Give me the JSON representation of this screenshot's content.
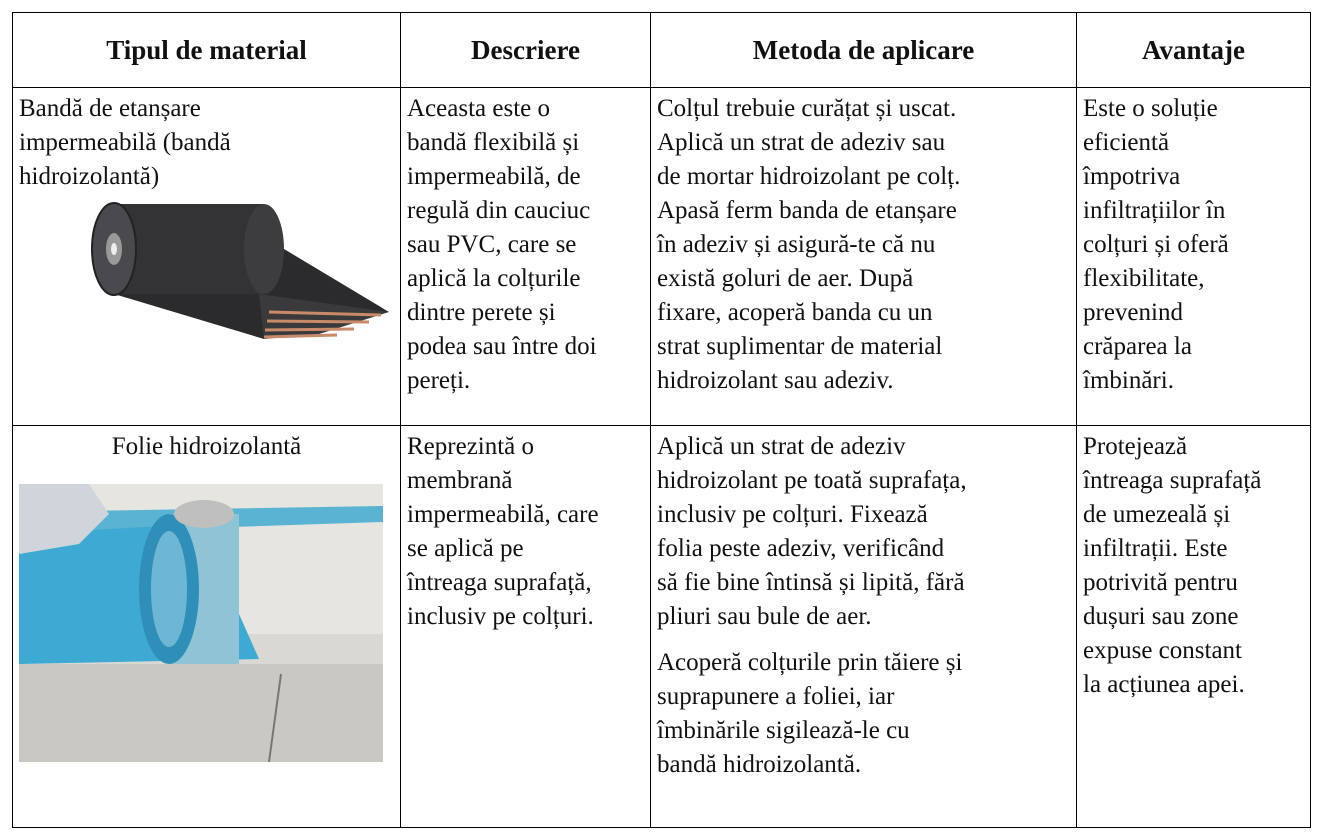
{
  "table": {
    "header": [
      "Tipul de material",
      "Descriere",
      "Metoda de aplicare",
      "Avantaje"
    ],
    "rows": [
      {
        "cells": [
          [
            [
              "Bandă de etanșare",
              "impermeabilă (bandă",
              "hidroizolantă)"
            ]
          ],
          [
            [
              "Aceasta este o",
              "bandă flexibilă și",
              "impermeabilă, de",
              "regulă din cauciuc",
              "sau PVC, care se",
              "aplică la colțurile",
              "dintre perete și",
              "podea sau între doi",
              "pereți."
            ]
          ],
          [
            [
              "Colțul trebuie curățat și uscat.",
              "Aplică un strat de adeziv sau",
              "de mortar hidroizolant pe colț.",
              "Apasă ferm banda de etanșare",
              "în adeziv și asigură-te că nu",
              "există goluri de aer. După",
              "fixare, acoperă banda cu un",
              "strat suplimentar de material",
              "hidroizolant sau adeziv."
            ]
          ],
          [
            [
              "Este o soluție",
              "eficientă",
              "împotriva",
              "infiltrațiilor în",
              "colțuri și oferă",
              "flexibilitate,",
              "prevenind",
              "crăparea la",
              "îmbinări."
            ]
          ]
        ]
      },
      {
        "cells": [
          [
            [
              "Folie hidroizolantă"
            ]
          ],
          [
            [
              "Reprezintă o",
              "membrană",
              "impermeabilă, care",
              "se aplică pe",
              "întreaga suprafață,",
              "inclusiv pe colțuri."
            ]
          ],
          [
            [
              "Aplică un strat de adeziv",
              "hidroizolant pe toată suprafața,",
              "inclusiv pe colțuri. Fixează",
              "folia peste adeziv, verificând",
              "să fie bine întinsă și lipită, fără",
              "pliuri sau bule de aer."
            ],
            [
              "Acoperă colțurile prin tăiere și",
              "suprapunere a foliei, iar",
              "îmbinările sigilează-le cu",
              "bandă hidroizolantă."
            ]
          ],
          [
            [
              "Protejează",
              "întreaga suprafață",
              "de umezeală și",
              "infiltrații. Este",
              "potrivită pentru",
              "dușuri sau zone",
              "expuse constant",
              "la acțiunea apei."
            ]
          ]
        ]
      }
    ]
  }
}
